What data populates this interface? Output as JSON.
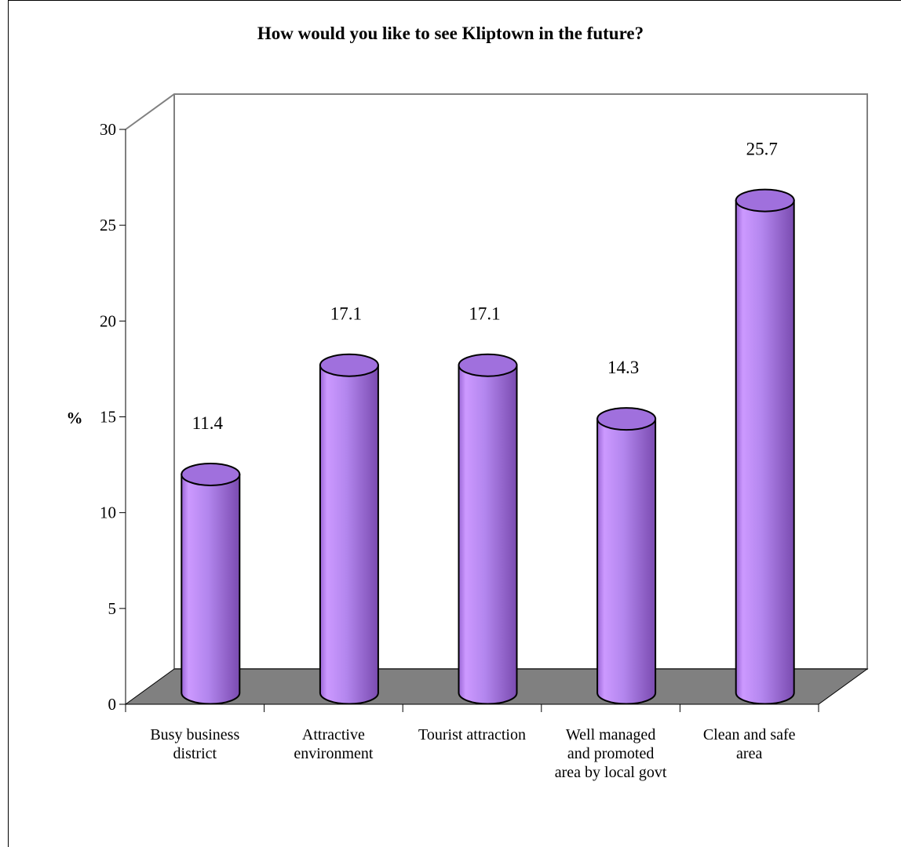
{
  "chart_data": {
    "type": "bar",
    "title": "How would you like to see Kliptown in the future?",
    "ylabel": "%",
    "xlabel": "",
    "ylim": [
      0,
      30
    ],
    "y_ticks": [
      0,
      5,
      10,
      15,
      20,
      25,
      30
    ],
    "categories": [
      [
        "Busy business",
        "district"
      ],
      [
        "Attractive",
        "environment"
      ],
      [
        "Tourist attraction"
      ],
      [
        "Well managed",
        "and promoted",
        "area by local govt"
      ],
      [
        "Clean and safe",
        "area"
      ]
    ],
    "values": [
      11.4,
      17.1,
      17.1,
      14.3,
      25.7
    ],
    "value_labels": [
      "11.4",
      "17.1",
      "17.1",
      "14.3",
      "25.7"
    ],
    "grid": false,
    "legend": "none",
    "colors": {
      "bar_light": "#cc99ff",
      "bar_dark": "#8855bb",
      "bar_top": "#a070dd",
      "floor": "#808080",
      "wall_line": "#808080"
    }
  }
}
